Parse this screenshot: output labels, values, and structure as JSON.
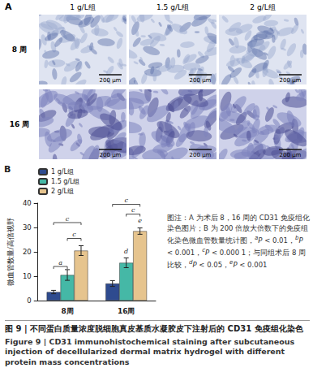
{
  "panel_a": {
    "label": "A",
    "columns": [
      "1 g/L组",
      "1.5 g/L组",
      "2 g/L组"
    ],
    "rows": [
      "8 周",
      "16 周"
    ],
    "scale_bar": "200 μm"
  },
  "chart_data": {
    "type": "bar",
    "panel_label": "B",
    "categories": [
      "8周",
      "16周"
    ],
    "series": [
      {
        "name": "1 g/L组",
        "color": "#2e4b8f",
        "values": [
          3.5,
          7
        ],
        "errors": [
          0.7,
          1.2
        ]
      },
      {
        "name": "1.5 g/L组",
        "color": "#45b8a6",
        "values": [
          10.5,
          15.5
        ],
        "errors": [
          2.2,
          2
        ]
      },
      {
        "name": "2 g/L组",
        "color": "#e6c48e",
        "values": [
          20.5,
          28.5
        ],
        "errors": [
          2,
          1.3
        ]
      }
    ],
    "ylabel": "微血管数量/高倍视野",
    "ylim": [
      0,
      40
    ],
    "yticks": [
      0,
      10,
      20,
      30,
      40
    ],
    "grid": false,
    "legend": "upper left",
    "brackets": [
      {
        "category": "8周",
        "from": "1 g/L组",
        "to": "1.5 g/L组",
        "y": 14,
        "label": "a"
      },
      {
        "category": "8周",
        "from": "1 g/L组",
        "to": "2 g/L组",
        "y": 32,
        "label": "c"
      },
      {
        "category": "8周",
        "from": "1.5 g/L组",
        "to": "2 g/L组",
        "y": 25.5,
        "label": "c"
      },
      {
        "category": "16周",
        "from": "1 g/L组",
        "to": "2 g/L组",
        "y": 39.5,
        "label": "c"
      },
      {
        "category": "16周",
        "from": "1.5 g/L组",
        "to": "2 g/L组",
        "y": 35.5,
        "label": "c"
      }
    ],
    "markers": [
      {
        "category": "16周",
        "series": "1.5 g/L组",
        "y": 19,
        "label": "d"
      },
      {
        "category": "16周",
        "series": "2 g/L组",
        "y": 31.5,
        "label": "e"
      }
    ]
  },
  "note": {
    "text": "图注：A 为术后 8，16 周的 CD31 免疫组化染色图片；B 为 200 倍放大倍数下的免疫组化染色微血管数量统计图，",
    "stats": [
      {
        "sup": "a",
        "text": "P < 0.01，"
      },
      {
        "sup": "b",
        "text": "P < 0.001，"
      },
      {
        "sup": "c",
        "text": "P < 0.000 1；"
      }
    ],
    "compare": "与同组术后 8 周比较，",
    "compare_stats": [
      {
        "sup": "d",
        "text": "P < 0.05，"
      },
      {
        "sup": "e",
        "text": "P < 0.001"
      }
    ]
  },
  "caption": {
    "zh": "图 9 | 不同蛋白质量浓度脱细胞真皮基质水凝胶皮下注射后的 CD31 免疫组化染色",
    "en": "Figure 9 | CD31 immunohistochemical staining after subcutaneous injection of decellularized dermal matrix hydrogel with different protein mass concentrations"
  }
}
